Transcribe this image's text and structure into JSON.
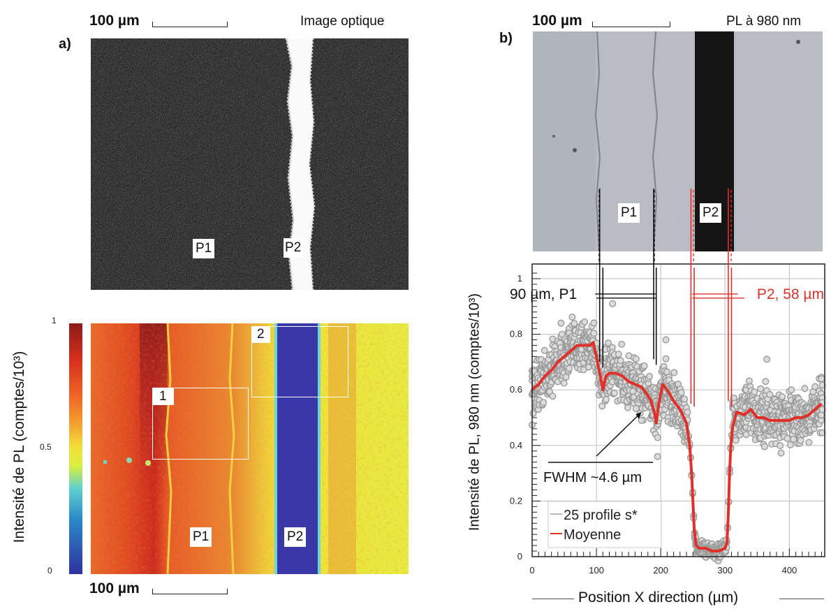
{
  "panel_a": {
    "letter": "a)",
    "scale_label_top": "100 µm",
    "scale_label_bottom": "100 µm",
    "optical_title": "Image optique",
    "optical_labels": [
      "P1",
      "P2"
    ],
    "map_labels": [
      "P1",
      "P2"
    ],
    "boxes": [
      "1",
      "2"
    ],
    "colorbar": {
      "label": "Intensité de PL (comptes/10³)",
      "ticks": [
        "1",
        "0.5",
        "0"
      ],
      "colors": [
        "#8b1a1a",
        "#e03a1e",
        "#f08a2a",
        "#f2e23a",
        "#e8ef3a",
        "#5fd0d0",
        "#2a8ac8",
        "#3030a0"
      ]
    }
  },
  "panel_b": {
    "letter": "b)",
    "scale_label": "100 µm",
    "pl_title": "PL à 980 nm",
    "image_labels": [
      "P1",
      "P2"
    ]
  },
  "chart_data": {
    "type": "scatter",
    "xlabel": "Position X direction (µm)",
    "ylabel": "Intensité de PL, 980 nm (comptes/10³)",
    "xlim": [
      0,
      455
    ],
    "ylim": [
      0,
      1.05
    ],
    "xticks": [
      "0",
      "100",
      "200",
      "300",
      "400"
    ],
    "yticks": [
      "0",
      "0.2",
      "0.4",
      "0.6",
      "0.8",
      "1"
    ],
    "grid": true,
    "legend_position": "bottom-left",
    "series": [
      {
        "name": "25 profile s*",
        "color": "#a0a0a0",
        "outliers": [
          [
            45,
            0.84
          ],
          [
            125,
            0.91
          ],
          [
            208,
            0.78
          ],
          [
            365,
            0.71
          ],
          [
            363,
            0.63
          ],
          [
            450,
            0.64
          ],
          [
            170,
            0.49
          ],
          [
            195,
            0.36
          ]
        ]
      },
      {
        "name": "Moyenne",
        "color": "#e0302a",
        "x": [
          0,
          10,
          20,
          30,
          40,
          50,
          60,
          70,
          80,
          90,
          95,
          100,
          105,
          110,
          115,
          120,
          130,
          140,
          150,
          160,
          170,
          180,
          185,
          190,
          193,
          197,
          203,
          210,
          220,
          230,
          240,
          245,
          248,
          250,
          252,
          255,
          260,
          270,
          280,
          290,
          300,
          303,
          305,
          307,
          309,
          312,
          318,
          330,
          340,
          350,
          360,
          370,
          380,
          390,
          400,
          410,
          420,
          430,
          440,
          450
        ],
        "y": [
          0.6,
          0.62,
          0.65,
          0.67,
          0.7,
          0.72,
          0.74,
          0.76,
          0.76,
          0.76,
          0.77,
          0.72,
          0.66,
          0.6,
          0.65,
          0.66,
          0.66,
          0.65,
          0.63,
          0.62,
          0.61,
          0.58,
          0.56,
          0.52,
          0.48,
          0.55,
          0.62,
          0.6,
          0.56,
          0.53,
          0.48,
          0.4,
          0.3,
          0.2,
          0.1,
          0.04,
          0.03,
          0.03,
          0.02,
          0.02,
          0.03,
          0.05,
          0.15,
          0.3,
          0.4,
          0.47,
          0.52,
          0.51,
          0.53,
          0.5,
          0.5,
          0.49,
          0.49,
          0.49,
          0.49,
          0.5,
          0.5,
          0.51,
          0.53,
          0.55
        ]
      }
    ],
    "annotations": {
      "p1_width": "90 µm, P1",
      "p2_width": "P2, 58 µm",
      "fwhm": "FWHM ~4.6 µm",
      "p1_color": "#111111",
      "p2_color": "#e0302a"
    }
  }
}
